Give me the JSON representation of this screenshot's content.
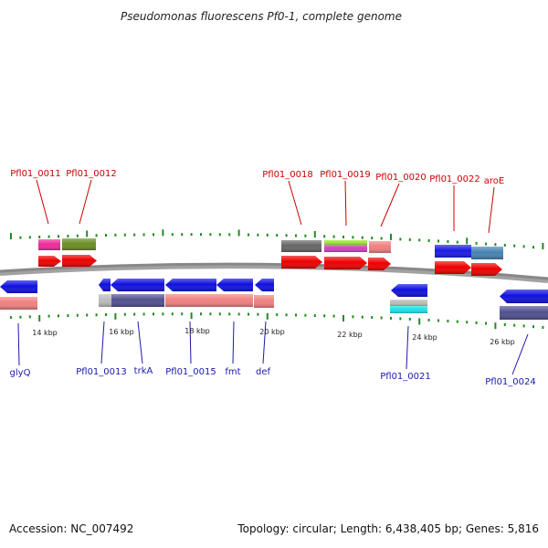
{
  "title": "Pseudomonas fluorescens Pf0-1, complete genome",
  "footer": {
    "accession": "Accession: NC_007492",
    "topology": "Topology: circular; Length: 6,438,405 bp; Genes: 5,816"
  },
  "colors": {
    "forward_label": "#cc0000",
    "reverse_label": "#1a1aaa",
    "backbone": "#888888",
    "tick": "#228b22",
    "cds_forward": "#ee0000",
    "cds_reverse": "#1010e0",
    "gene_forward": "#f08080",
    "gene_reverse": "#505090"
  },
  "ticks": [
    "14 kbp",
    "16 kbp",
    "18 kbp",
    "20 kbp",
    "22 kbp",
    "24 kbp",
    "26 kbp"
  ],
  "forward_genes": [
    "Pfl01_0011",
    "Pfl01_0012",
    "Pfl01_0018",
    "Pfl01_0019",
    "Pfl01_0020",
    "Pfl01_0022",
    "aroE"
  ],
  "reverse_genes": [
    "glyQ",
    "Pfl01_0013",
    "trkA",
    "Pfl01_0015",
    "fmt",
    "def",
    "Pfl01_0021",
    "Pfl01_0024"
  ]
}
